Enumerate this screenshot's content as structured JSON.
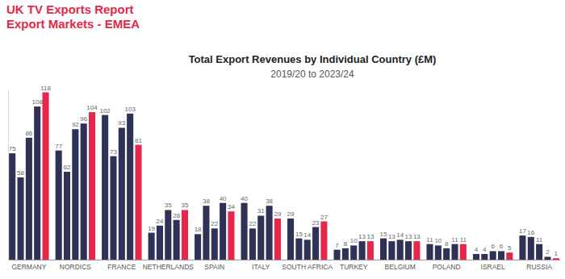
{
  "chart_data": {
    "type": "bar",
    "annotations": [
      "UK TV Exports Report",
      "Export Markets - EMEA"
    ],
    "title": "Total Export Revenues by Individual Country (£M)",
    "subtitle": "2019/20 to 2023/24",
    "categories": [
      "GERMANY",
      "NORDICS",
      "FRANCE",
      "NETHERLANDS",
      "SPAIN",
      "ITALY",
      "SOUTH AFRICA",
      "TURKEY",
      "BELGIUM",
      "POLAND",
      "ISRAEL",
      "RUSSIA"
    ],
    "series": [
      {
        "color": "#2f3157",
        "values": [
          75,
          77,
          102,
          19,
          18,
          40,
          29,
          7,
          15,
          11,
          4,
          17
        ]
      },
      {
        "color": "#2f3157",
        "values": [
          58,
          62,
          73,
          24,
          38,
          22,
          15,
          8,
          13,
          10,
          4,
          16
        ]
      },
      {
        "color": "#2f3157",
        "values": [
          86,
          92,
          93,
          35,
          22,
          31,
          14,
          10,
          14,
          8,
          6,
          11
        ]
      },
      {
        "color": "#2f3157",
        "values": [
          108,
          96,
          103,
          28,
          40,
          38,
          23,
          13,
          13,
          11,
          6,
          2
        ]
      },
      {
        "color": "#e5284a",
        "values": [
          118,
          104,
          81,
          35,
          34,
          29,
          27,
          13,
          13,
          11,
          5,
          1
        ]
      }
    ],
    "ylim": [
      0,
      120
    ],
    "yticks": [],
    "data_labels": true,
    "tick_labels": "x",
    "grid": false
  }
}
